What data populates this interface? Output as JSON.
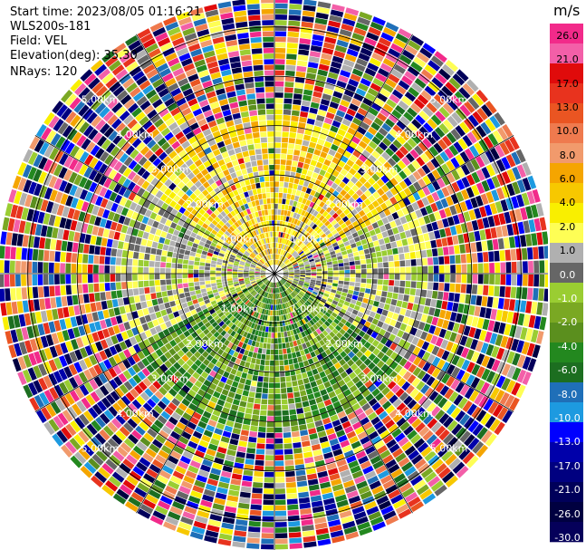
{
  "header": {
    "start_time": "Start time: 2023/08/05 01:16:21",
    "instrument": "WLS200s-181",
    "field": "Field: VEL",
    "elevation": "Elevation(deg): 35.30",
    "nrays": "NRays: 120"
  },
  "colorbar": {
    "unit": "m/s",
    "ticks": [
      "26.0",
      "21.0",
      "17.0",
      "13.0",
      "10.0",
      "8.0",
      "6.0",
      "4.0",
      "2.0",
      "1.0",
      "0.0",
      "-1.0",
      "-2.0",
      "-4.0",
      "-6.0",
      "-8.0",
      "-10.0",
      "-13.0",
      "-17.0",
      "-21.0",
      "-26.0",
      "-30.0"
    ],
    "colors": [
      "#f22a8a",
      "#f35fa8",
      "#e00b0b",
      "#e8331e",
      "#ea5522",
      "#ef7a4e",
      "#f19a6c",
      "#f5a500",
      "#f7c800",
      "#f9ef00",
      "#fefe55",
      "#b0b0b0",
      "#666666",
      "#9acd32",
      "#7aa823",
      "#5b8f1e",
      "#23881f",
      "#1c6e20",
      "#1f6fb8",
      "#1d9ae0",
      "#0000ff",
      "#0000aa",
      "#000080",
      "#00005a",
      "#000040",
      "#05005a"
    ]
  },
  "chart_data": {
    "type": "ppi",
    "field": "VEL",
    "nrays": 120,
    "elevation_deg": 35.3,
    "range_rings_km": [
      1.0,
      2.0,
      3.0,
      4.0,
      5.0
    ],
    "ring_labels": [
      "1.00km",
      "2.00km",
      "3.00km",
      "4.00km",
      "5.00km"
    ],
    "max_range_km": 5.6,
    "vmin": -30.0,
    "vmax": 26.0,
    "pattern": {
      "inner_radius_km": 3.3,
      "north_sector_colors": [
        "#fefe55",
        "#f9ef00",
        "#f5a500",
        "#f7c800",
        "#b0b0b0"
      ],
      "east_west_colors": [
        "#fefe55",
        "#b0b0b0",
        "#9acd32",
        "#666666"
      ],
      "south_sector_colors": [
        "#23881f",
        "#1c6e20",
        "#5b8f1e",
        "#7aa823",
        "#9acd32"
      ]
    }
  }
}
